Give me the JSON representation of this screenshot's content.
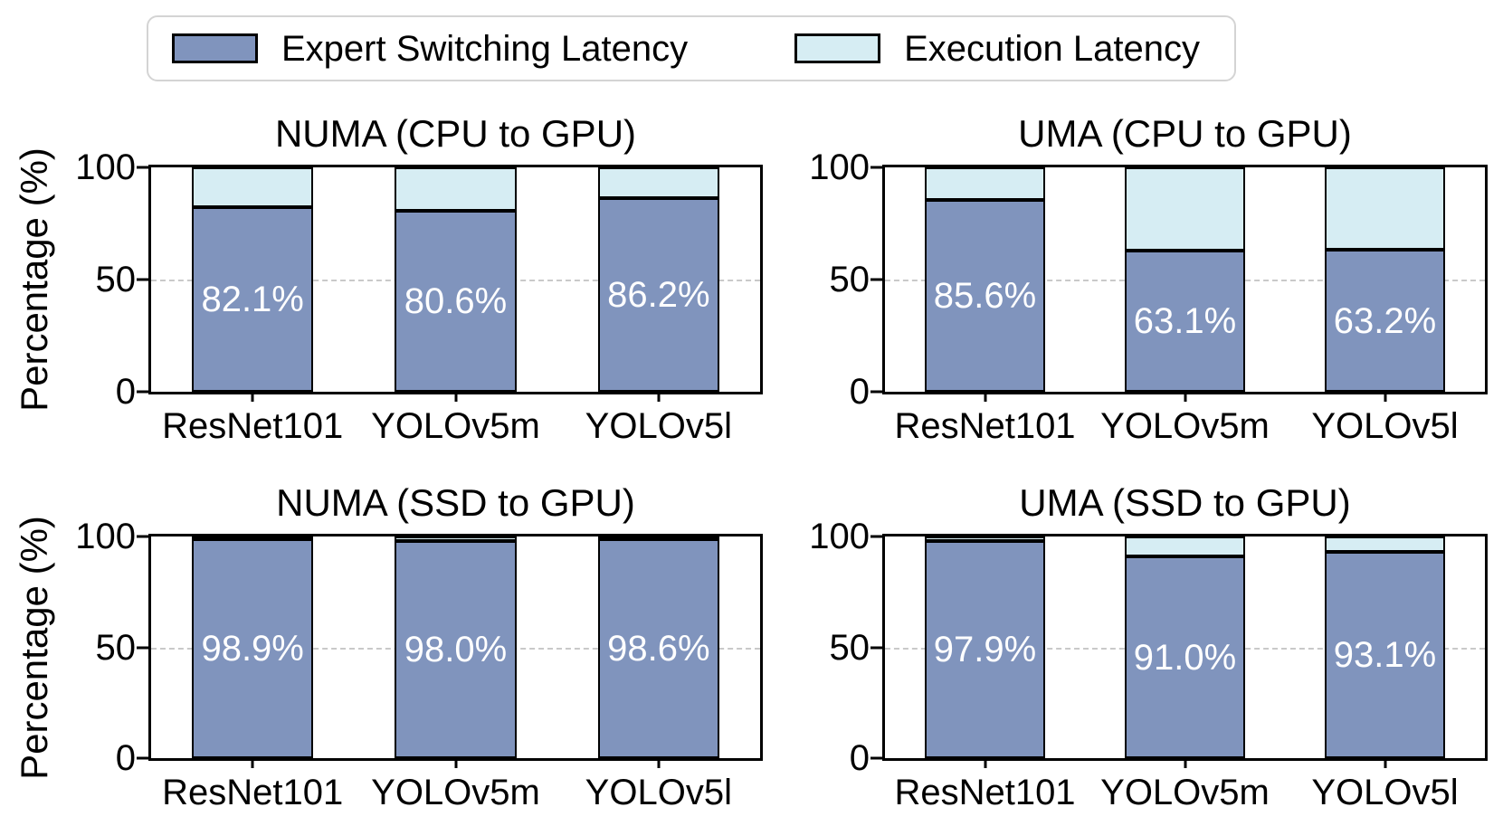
{
  "ylabel": "Percentage (%)",
  "legend": {
    "items": [
      {
        "label": "Expert Switching Latency",
        "color": "#8094BD"
      },
      {
        "label": "Execution Latency",
        "color": "#D6EDF3"
      }
    ]
  },
  "colors": {
    "expert_switching": "#8094BD",
    "execution": "#D6EDF3",
    "bar_edge": "#000000",
    "gridline": "#c9c9c9"
  },
  "chart_data": [
    {
      "type": "bar",
      "stacked": true,
      "title": "NUMA (CPU to GPU)",
      "categories": [
        "ResNet101",
        "YOLOv5m",
        "YOLOv5l"
      ],
      "series": [
        {
          "name": "Expert Switching Latency",
          "values": [
            82.1,
            80.6,
            86.2
          ]
        },
        {
          "name": "Execution Latency",
          "values": [
            17.9,
            19.4,
            13.8
          ]
        }
      ],
      "bar_labels": [
        "82.1%",
        "80.6%",
        "86.2%"
      ],
      "ylabel": "Percentage (%)",
      "yticks": [
        0,
        50,
        100
      ],
      "ylim": [
        0,
        100
      ],
      "gridline_y": 50,
      "legend_position": "top-outside"
    },
    {
      "type": "bar",
      "stacked": true,
      "title": "UMA (CPU to GPU)",
      "categories": [
        "ResNet101",
        "YOLOv5m",
        "YOLOv5l"
      ],
      "series": [
        {
          "name": "Expert Switching Latency",
          "values": [
            85.6,
            63.1,
            63.2
          ]
        },
        {
          "name": "Execution Latency",
          "values": [
            14.4,
            36.9,
            36.8
          ]
        }
      ],
      "bar_labels": [
        "85.6%",
        "63.1%",
        "63.2%"
      ],
      "ylabel": "Percentage (%)",
      "yticks": [
        0,
        50,
        100
      ],
      "ylim": [
        0,
        100
      ],
      "gridline_y": 50,
      "legend_position": "top-outside"
    },
    {
      "type": "bar",
      "stacked": true,
      "title": "NUMA (SSD to GPU)",
      "categories": [
        "ResNet101",
        "YOLOv5m",
        "YOLOv5l"
      ],
      "series": [
        {
          "name": "Expert Switching Latency",
          "values": [
            98.9,
            98.0,
            98.6
          ]
        },
        {
          "name": "Execution Latency",
          "values": [
            1.1,
            2.0,
            1.4
          ]
        }
      ],
      "bar_labels": [
        "98.9%",
        "98.0%",
        "98.6%"
      ],
      "ylabel": "Percentage (%)",
      "yticks": [
        0,
        50,
        100
      ],
      "ylim": [
        0,
        100
      ],
      "gridline_y": 50,
      "legend_position": "top-outside"
    },
    {
      "type": "bar",
      "stacked": true,
      "title": "UMA (SSD to GPU)",
      "categories": [
        "ResNet101",
        "YOLOv5m",
        "YOLOv5l"
      ],
      "series": [
        {
          "name": "Expert Switching Latency",
          "values": [
            97.9,
            91.0,
            93.1
          ]
        },
        {
          "name": "Execution Latency",
          "values": [
            2.1,
            9.0,
            6.9
          ]
        }
      ],
      "bar_labels": [
        "97.9%",
        "91.0%",
        "93.1%"
      ],
      "ylabel": "Percentage (%)",
      "yticks": [
        0,
        50,
        100
      ],
      "ylim": [
        0,
        100
      ],
      "gridline_y": 50,
      "legend_position": "top-outside"
    }
  ]
}
